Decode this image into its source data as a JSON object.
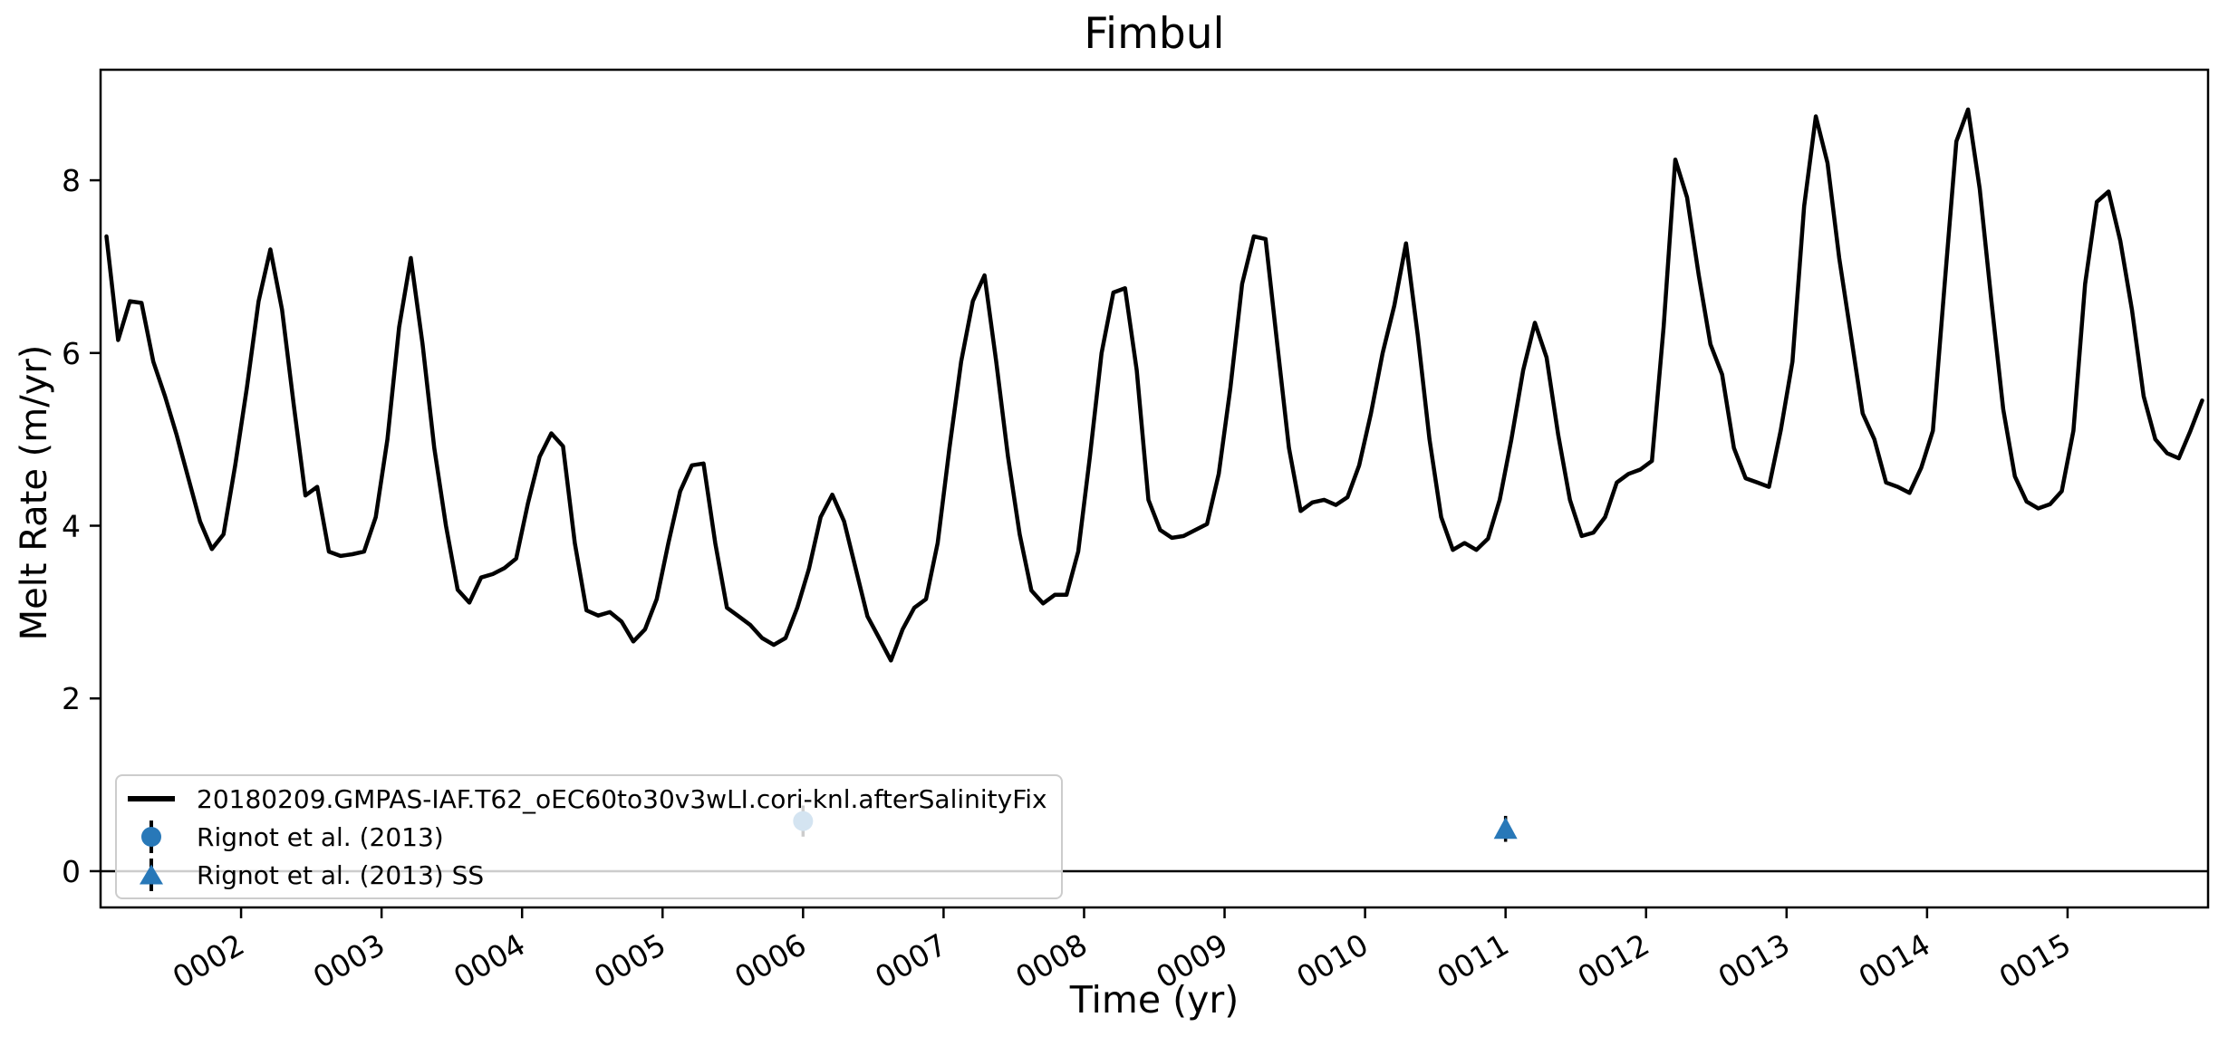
{
  "figure": {
    "title": "Fimbul"
  },
  "chart_data": {
    "type": "line",
    "title": "Fimbul",
    "xlabel": "Time (yr)",
    "ylabel": "Melt Rate (m/yr)",
    "xlim": [
      1,
      16
    ],
    "ylim": [
      -0.42,
      9.28
    ],
    "grid": false,
    "zero_line": 0,
    "legend_position": "lower left",
    "x_ticks": [
      {
        "value": 2,
        "label": "0002"
      },
      {
        "value": 3,
        "label": "0003"
      },
      {
        "value": 4,
        "label": "0004"
      },
      {
        "value": 5,
        "label": "0005"
      },
      {
        "value": 6,
        "label": "0006"
      },
      {
        "value": 7,
        "label": "0007"
      },
      {
        "value": 8,
        "label": "0008"
      },
      {
        "value": 9,
        "label": "0009"
      },
      {
        "value": 10,
        "label": "0010"
      },
      {
        "value": 11,
        "label": "0011"
      },
      {
        "value": 12,
        "label": "0012"
      },
      {
        "value": 13,
        "label": "0013"
      },
      {
        "value": 14,
        "label": "0014"
      },
      {
        "value": 15,
        "label": "0015"
      }
    ],
    "y_ticks": [
      {
        "value": 0,
        "label": "0"
      },
      {
        "value": 2,
        "label": "2"
      },
      {
        "value": 4,
        "label": "4"
      },
      {
        "value": 6,
        "label": "6"
      },
      {
        "value": 8,
        "label": "8"
      }
    ],
    "series": [
      {
        "name": "20180209.GMPAS-IAF.T62_oEC60to30v3wLI.cori-knl.afterSalinityFix",
        "color": "#000000",
        "line_width": 4.5,
        "sampling": "monthly",
        "start_year": 1,
        "values": [
          7.35,
          6.15,
          6.6,
          6.58,
          5.9,
          5.5,
          5.05,
          4.55,
          4.05,
          3.73,
          3.9,
          4.7,
          5.6,
          6.6,
          7.2,
          6.5,
          5.4,
          4.35,
          4.45,
          3.7,
          3.65,
          3.67,
          3.7,
          4.1,
          5.0,
          6.3,
          7.1,
          6.1,
          4.9,
          4.0,
          3.26,
          3.11,
          3.4,
          3.44,
          3.51,
          3.62,
          4.26,
          4.8,
          5.07,
          4.92,
          3.8,
          3.02,
          2.96,
          3.0,
          2.89,
          2.66,
          2.8,
          3.15,
          3.8,
          4.4,
          4.7,
          4.72,
          3.8,
          3.05,
          2.95,
          2.85,
          2.7,
          2.62,
          2.7,
          3.05,
          3.5,
          4.1,
          4.36,
          4.05,
          3.5,
          2.95,
          2.7,
          2.44,
          2.8,
          3.05,
          3.15,
          3.8,
          4.9,
          5.9,
          6.6,
          6.9,
          5.9,
          4.8,
          3.9,
          3.25,
          3.1,
          3.2,
          3.2,
          3.7,
          4.8,
          6.0,
          6.7,
          6.75,
          5.8,
          4.3,
          3.95,
          3.86,
          3.88,
          3.95,
          4.02,
          4.6,
          5.6,
          6.8,
          7.35,
          7.32,
          6.1,
          4.9,
          4.17,
          4.27,
          4.3,
          4.24,
          4.33,
          4.7,
          5.3,
          6.0,
          6.55,
          7.27,
          6.2,
          5.0,
          4.1,
          3.72,
          3.8,
          3.72,
          3.85,
          4.3,
          5.0,
          5.8,
          6.35,
          5.95,
          5.05,
          4.3,
          3.88,
          3.92,
          4.1,
          4.5,
          4.6,
          4.65,
          4.75,
          6.3,
          8.24,
          7.8,
          6.9,
          6.1,
          5.75,
          4.9,
          4.55,
          4.5,
          4.45,
          5.1,
          5.9,
          7.7,
          8.74,
          8.2,
          7.1,
          6.2,
          5.3,
          5.0,
          4.5,
          4.45,
          4.38,
          4.67,
          5.1,
          6.8,
          8.45,
          8.82,
          7.9,
          6.6,
          5.35,
          4.57,
          4.28,
          4.2,
          4.25,
          4.4,
          5.1,
          6.8,
          7.75,
          7.87,
          7.3,
          6.5,
          5.5,
          5.0,
          4.84,
          4.78,
          5.1,
          5.45
        ]
      }
    ],
    "observations": [
      {
        "name": "Rignot et al. (2013)",
        "marker": "circle",
        "x": 6.0,
        "y": 0.58,
        "yerr": 0.18,
        "color": "#2878b8"
      },
      {
        "name": "Rignot et al. (2013) SS",
        "marker": "triangle",
        "x": 11.0,
        "y": 0.49,
        "yerr": 0.15,
        "color": "#2878b8"
      }
    ],
    "colors": {
      "axes": "#000000",
      "legend_border": "#cccccc",
      "obs_blue": "#2878b8"
    }
  }
}
